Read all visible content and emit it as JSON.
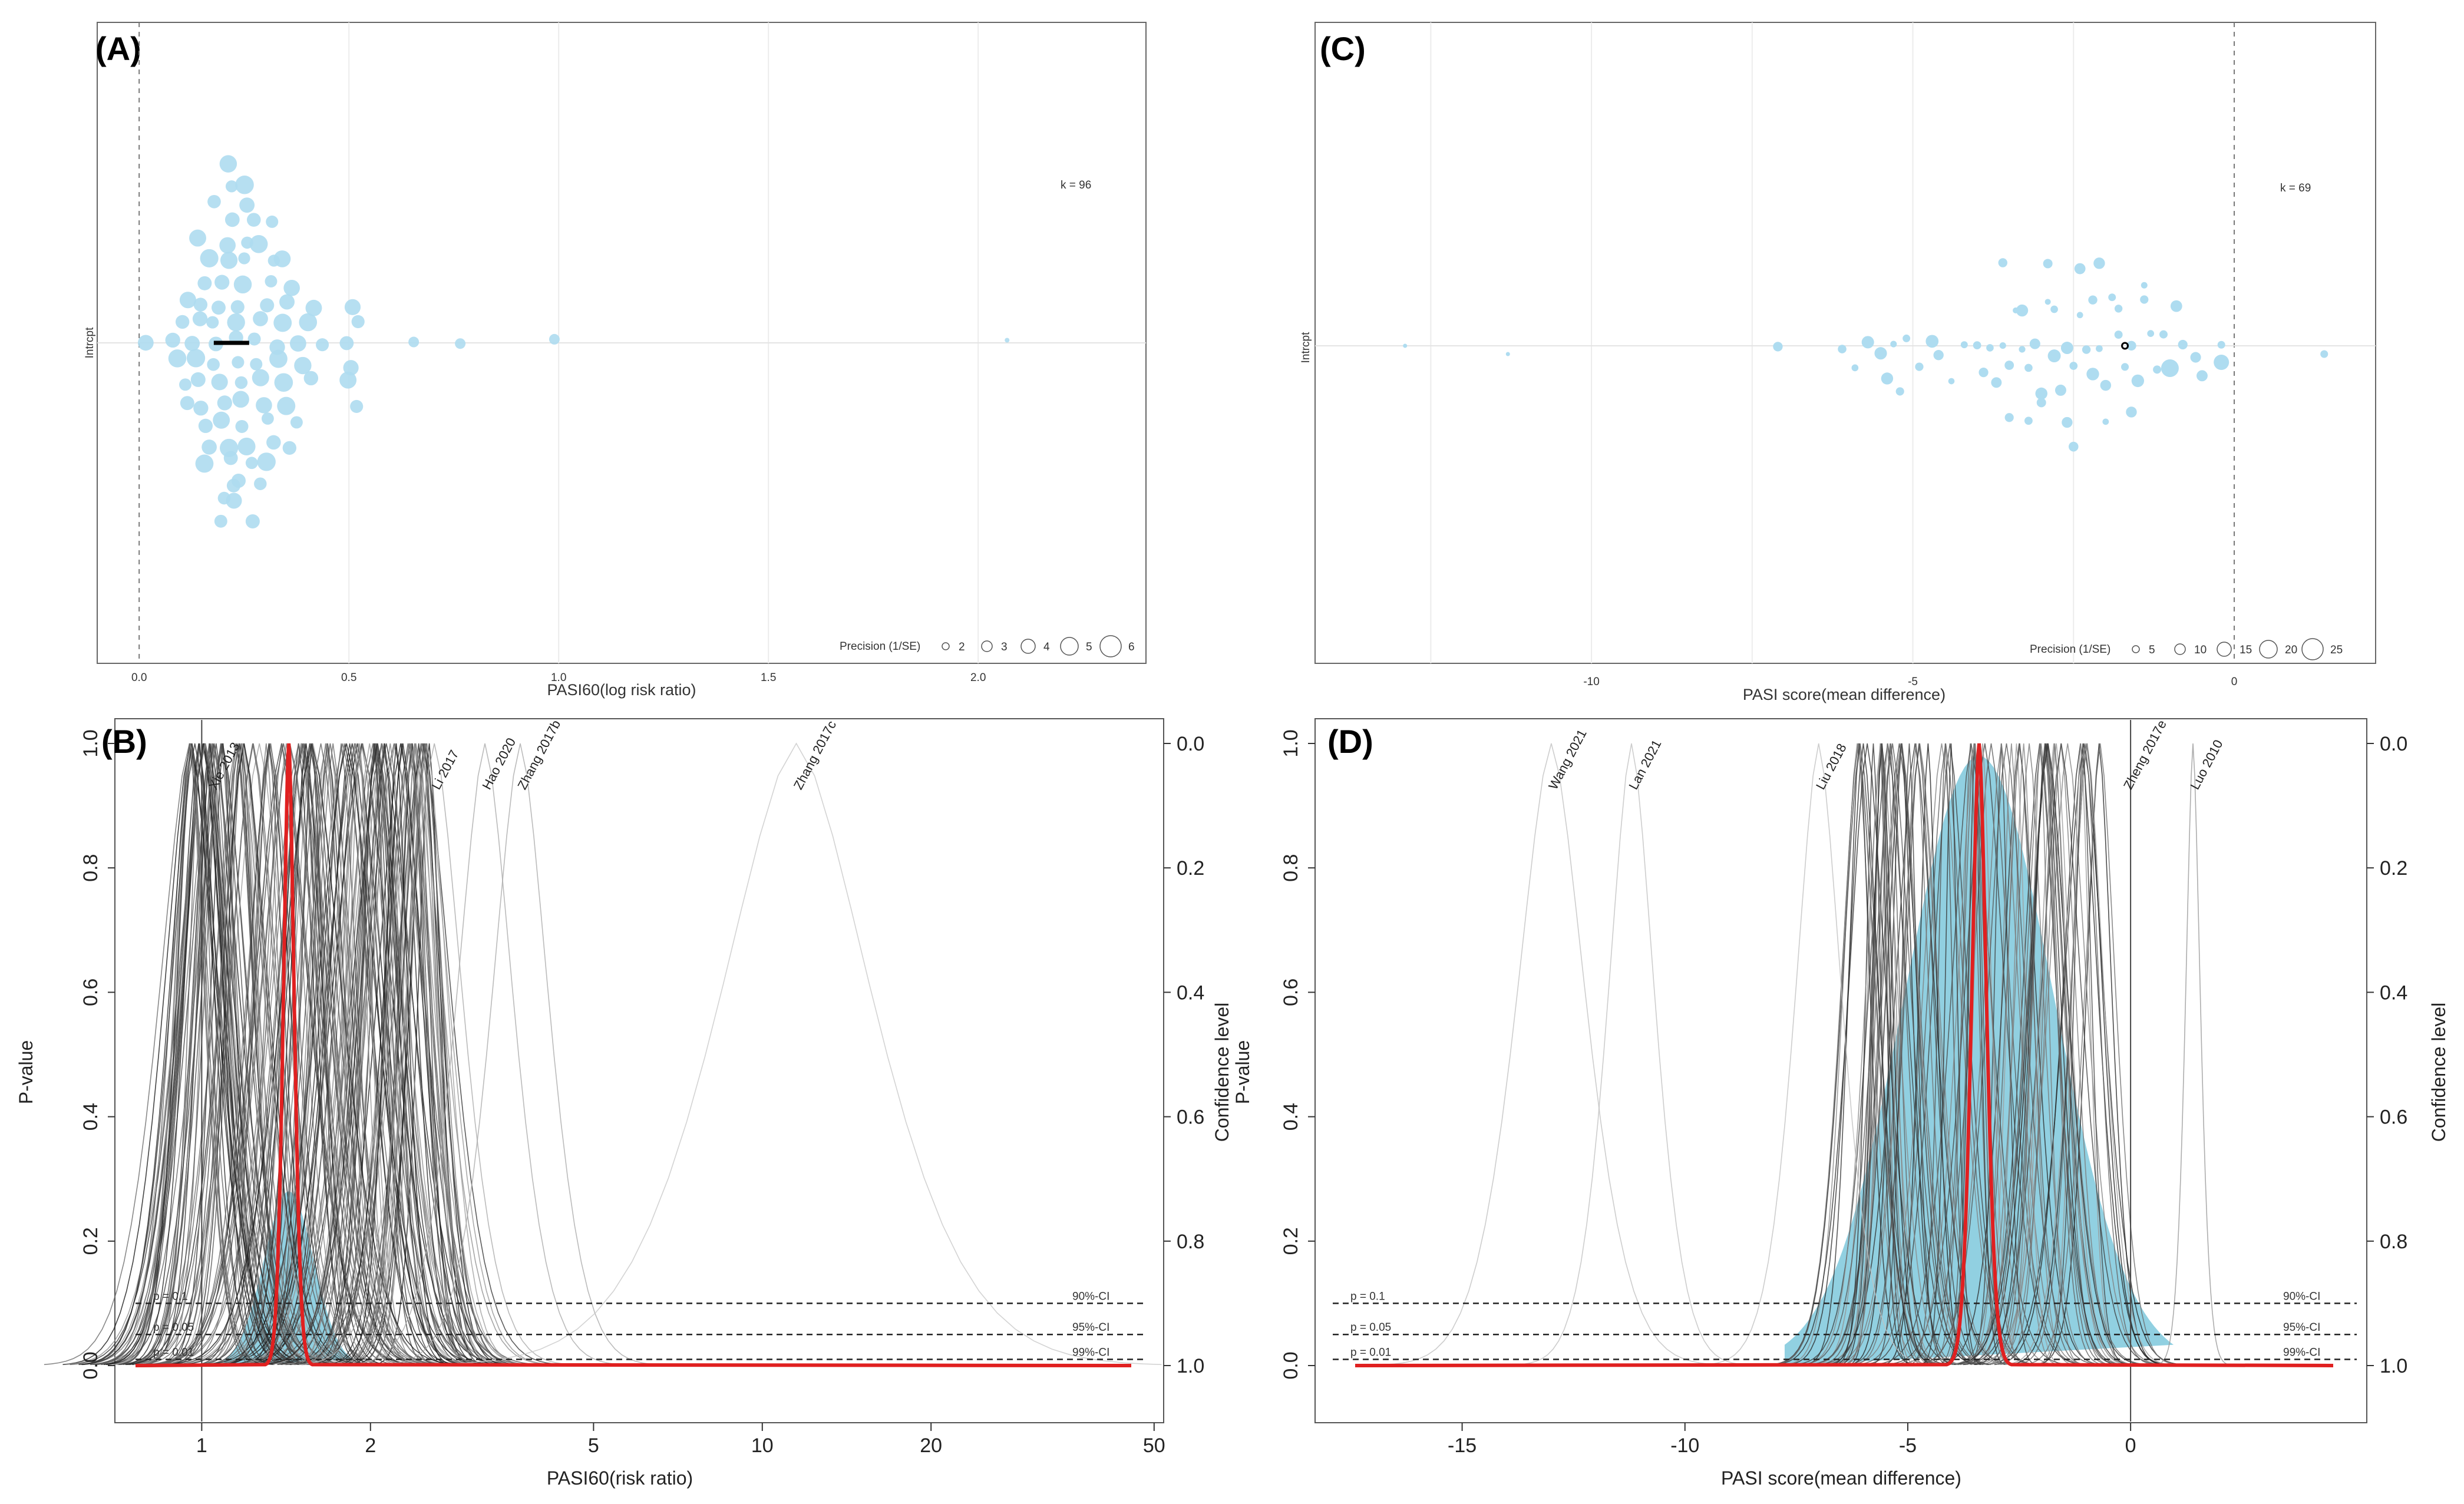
{
  "figure": {
    "panels": {
      "A": {
        "label": "(A)"
      },
      "B": {
        "label": "(B)"
      },
      "C": {
        "label": "(C)"
      },
      "D": {
        "label": "(D)"
      }
    }
  },
  "chart_data": [
    {
      "panel": "(A)",
      "type": "scatter",
      "subtype": "orchard plot",
      "xlabel": "PASI60(log risk ratio)",
      "ylabel": "Intrcpt",
      "xlim": [
        -0.1,
        2.4
      ],
      "xticks": [
        "0.0",
        "0.5",
        "1.0",
        "1.5",
        "2.0"
      ],
      "k_label": "k = 96",
      "legend": {
        "title": "Precision (1/SE)",
        "sizes": [
          "2",
          "3",
          "4",
          "5",
          "6"
        ]
      },
      "pooled_estimate": 0.22,
      "reference_line_x": 0,
      "point_color": "#aedcf0",
      "point_x_values": [
        0.02,
        0.08,
        0.09,
        0.1,
        0.11,
        0.12,
        0.13,
        0.13,
        0.14,
        0.14,
        0.15,
        0.15,
        0.16,
        0.16,
        0.17,
        0.17,
        0.18,
        0.18,
        0.18,
        0.19,
        0.19,
        0.2,
        0.2,
        0.2,
        0.21,
        0.21,
        0.21,
        0.22,
        0.22,
        0.22,
        0.23,
        0.23,
        0.23,
        0.24,
        0.24,
        0.24,
        0.25,
        0.25,
        0.25,
        0.26,
        0.26,
        0.27,
        0.27,
        0.28,
        0.28,
        0.29,
        0.29,
        0.3,
        0.3,
        0.31,
        0.31,
        0.32,
        0.32,
        0.33,
        0.33,
        0.34,
        0.34,
        0.35,
        0.35,
        0.36,
        0.37,
        0.38,
        0.39,
        0.4,
        0.41,
        0.42,
        0.44,
        0.5,
        0.51,
        0.52,
        0.5,
        0.51,
        0.52,
        0.65,
        0.77,
        0.99,
        2.07,
        0.12,
        0.14,
        0.16,
        0.18,
        0.2,
        0.22,
        0.24,
        0.26,
        0.28,
        0.3,
        0.32,
        0.34,
        0.36,
        0.19,
        0.21,
        0.23,
        0.25,
        0.27,
        0.29
      ]
    },
    {
      "panel": "(C)",
      "type": "scatter",
      "subtype": "orchard plot",
      "xlabel": "PASI score(mean difference)",
      "ylabel": "Intrcpt",
      "xlim": [
        -14.3,
        2.2
      ],
      "xticks": [
        "-10",
        "-5",
        "0"
      ],
      "k_label": "k = 69",
      "legend": {
        "title": "Precision (1/SE)",
        "sizes": [
          "5",
          "10",
          "15",
          "20",
          "25"
        ]
      },
      "pooled_estimate": -1.7,
      "reference_line_x": 0,
      "point_color": "#aedcf0",
      "point_x_values": [
        -12.9,
        -11.3,
        -7.1,
        -6.1,
        -5.9,
        -5.7,
        -5.5,
        -5.4,
        -5.3,
        -5.2,
        -5.1,
        -4.9,
        -4.7,
        -4.6,
        -4.4,
        -4.2,
        -4.0,
        -3.9,
        -3.8,
        -3.7,
        -3.6,
        -3.5,
        -3.4,
        -3.3,
        -3.2,
        -3.1,
        -3.0,
        -2.9,
        -2.8,
        -2.7,
        -2.6,
        -2.5,
        -2.4,
        -2.3,
        -2.2,
        -2.1,
        -2.0,
        -1.9,
        -1.8,
        -1.7,
        -1.6,
        -1.5,
        -1.4,
        -1.3,
        -1.2,
        -1.1,
        -1.0,
        -0.9,
        -0.8,
        -0.6,
        -0.5,
        -0.2,
        1.4,
        -3.5,
        -3.3,
        -3.0,
        -2.8,
        -2.6,
        -2.4,
        -2.2,
        -2.0,
        -1.8,
        -3.6,
        -3.2,
        -2.9,
        -2.5,
        -2.1,
        -1.6,
        -1.4
      ]
    },
    {
      "panel": "(B)",
      "type": "line",
      "subtype": "p-value function (drapery plot)",
      "xlabel": "PASI60(risk ratio)",
      "ylabel": "P-value",
      "ylabel_right": "Confidence level",
      "x_scale": "log",
      "xticks": [
        "1",
        "2",
        "5",
        "10",
        "20",
        "50"
      ],
      "yticks": [
        "0.0",
        "0.2",
        "0.4",
        "0.6",
        "0.8",
        "1.0"
      ],
      "yticks_right": [
        "1.0",
        "0.8",
        "0.6",
        "0.4",
        "0.2",
        "0.0"
      ],
      "threshold_lines": [
        {
          "p": 0.1,
          "label_left": "p = 0.1",
          "label_right": "90%-CI"
        },
        {
          "p": 0.05,
          "label_left": "p = 0.05",
          "label_right": "95%-CI"
        },
        {
          "p": 0.01,
          "label_left": "p = 0.01",
          "label_right": "99%-CI"
        }
      ],
      "pooled_estimate": 1.43,
      "prediction_color": "#7ec8dc",
      "pooled_color": "#e02020",
      "study_labels": [
        {
          "name": "Xie 2013",
          "estimate": 1.04
        },
        {
          "name": "Li 2017",
          "estimate": 2.6
        },
        {
          "name": "Hao 2020",
          "estimate": 3.2
        },
        {
          "name": "Zhang 2017b",
          "estimate": 3.7
        },
        {
          "name": "Zhang 2017c",
          "estimate": 11.5
        }
      ]
    },
    {
      "panel": "(D)",
      "type": "line",
      "subtype": "p-value function (drapery plot)",
      "xlabel": "PASI score(mean difference)",
      "ylabel": "P-value",
      "ylabel_right": "Confidence level",
      "x_scale": "linear",
      "xticks": [
        "-15",
        "-10",
        "-5",
        "0"
      ],
      "yticks": [
        "0.0",
        "0.2",
        "0.4",
        "0.6",
        "0.8",
        "1.0"
      ],
      "yticks_right": [
        "1.0",
        "0.8",
        "0.6",
        "0.4",
        "0.2",
        "0.0"
      ],
      "threshold_lines": [
        {
          "p": 0.1,
          "label_left": "p = 0.1",
          "label_right": "90%-CI"
        },
        {
          "p": 0.05,
          "label_left": "p = 0.05",
          "label_right": "95%-CI"
        },
        {
          "p": 0.01,
          "label_left": "p = 0.01",
          "label_right": "99%-CI"
        }
      ],
      "pooled_estimate": -3.4,
      "prediction_color": "#7ec8dc",
      "pooled_color": "#e02020",
      "study_labels": [
        {
          "name": "Wang 2021",
          "estimate": -13.0
        },
        {
          "name": "Lan 2021",
          "estimate": -11.2
        },
        {
          "name": "Liu 2018",
          "estimate": -7.0
        },
        {
          "name": "Zheng 2017e",
          "estimate": -0.1
        },
        {
          "name": "Luo 2010",
          "estimate": 1.4
        }
      ]
    }
  ]
}
